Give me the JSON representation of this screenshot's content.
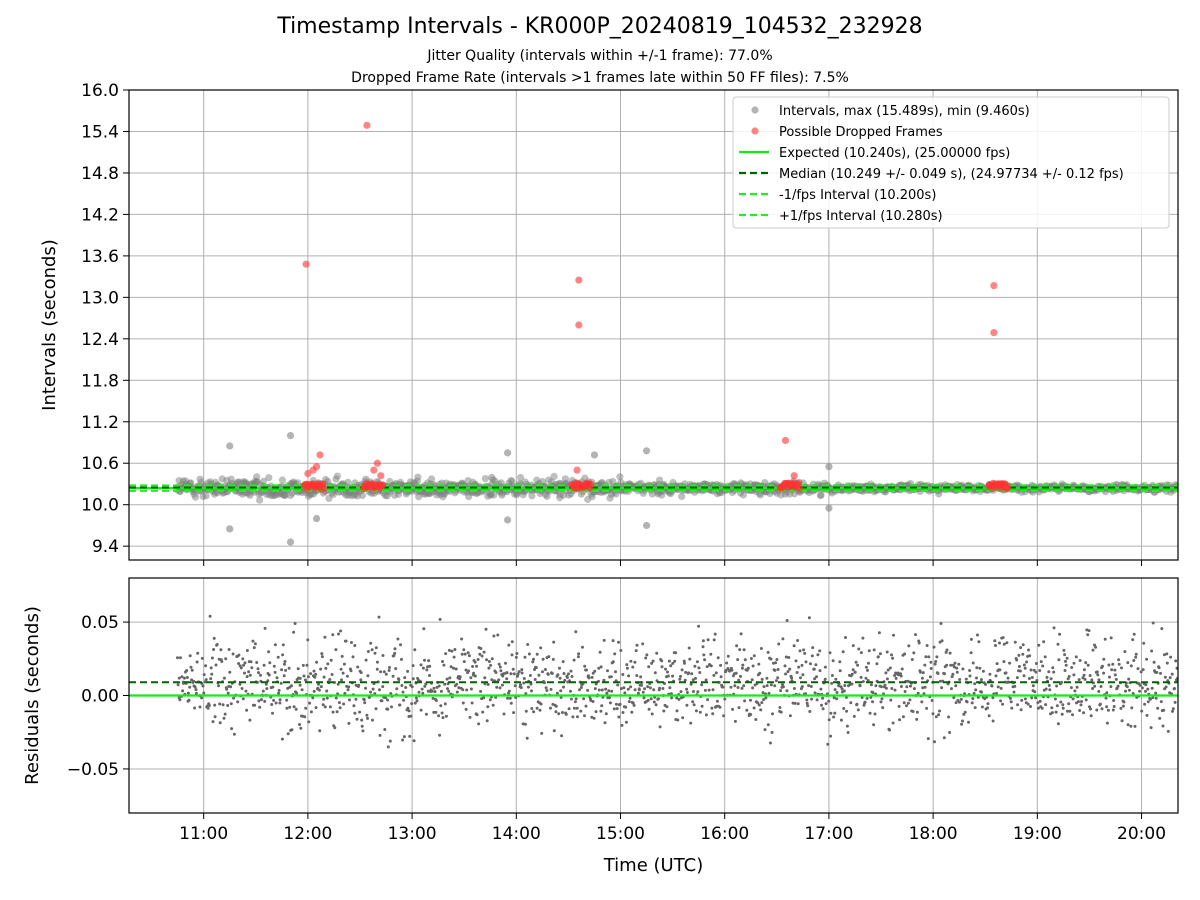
{
  "figure": {
    "title": "Timestamp Intervals - KR000P_20240819_104532_232928",
    "subtitle_jitter": "Jitter Quality (intervals within +/-1 frame): 77.0%",
    "subtitle_dropped": "Dropped Frame Rate (intervals >1 frames late within 50 FF files): 7.5%"
  },
  "chart_data": [
    {
      "type": "scatter",
      "ylabel": "Intervals (seconds)",
      "xlabel": "",
      "xlim": [
        "10:17",
        "20:21"
      ],
      "ylim": [
        9.2,
        16.0
      ],
      "yticks": [
        9.4,
        10.0,
        10.6,
        11.2,
        11.8,
        12.4,
        13.0,
        13.6,
        14.2,
        14.8,
        15.4,
        16.0
      ],
      "ytick_labels": [
        "9.4",
        "10.0",
        "10.6",
        "11.2",
        "11.8",
        "12.4",
        "13.0",
        "13.6",
        "14.2",
        "14.8",
        "15.4",
        "16.0"
      ],
      "grid": true,
      "legend_position": "top-right",
      "legend": [
        {
          "key": "intervals",
          "label": "Intervals, max (15.489s), min (9.460s)",
          "marker": "dot",
          "color": "#808080"
        },
        {
          "key": "dropped",
          "label": "Possible Dropped Frames",
          "marker": "dot",
          "color": "#ff3333"
        },
        {
          "key": "expected",
          "label": "Expected (10.240s), (25.00000 fps)",
          "marker": "solid",
          "color": "#11ee11"
        },
        {
          "key": "median",
          "label": "Median (10.249 +/- 0.049 s), (24.97734 +/- 0.12 fps)",
          "marker": "dashed",
          "color": "#006400"
        },
        {
          "key": "minus",
          "label": "-1/fps Interval (10.200s)",
          "marker": "dashed",
          "color": "#22ee22"
        },
        {
          "key": "plus",
          "label": "+1/fps Interval (10.280s)",
          "marker": "dashed",
          "color": "#22ee22"
        }
      ],
      "reference_lines": {
        "expected": 10.24,
        "median": 10.249,
        "minus_1_fps": 10.2,
        "plus_1_fps": 10.28
      },
      "series": [
        {
          "name": "Intervals, max (15.489s), min (9.460s)",
          "color": "#808080",
          "data_start": "10:45",
          "data_end": "20:21",
          "max": 15.489,
          "min": 9.46,
          "outliers": [
            {
              "x": "11:15",
              "y": 10.85
            },
            {
              "x": "11:50",
              "y": 11.0
            },
            {
              "x": "11:50",
              "y": 9.46
            },
            {
              "x": "11:15",
              "y": 9.65
            },
            {
              "x": "13:55",
              "y": 10.75
            },
            {
              "x": "14:45",
              "y": 10.72
            },
            {
              "x": "15:15",
              "y": 10.78
            },
            {
              "x": "15:15",
              "y": 9.7
            },
            {
              "x": "13:55",
              "y": 9.78
            },
            {
              "x": "12:05",
              "y": 9.8
            },
            {
              "x": "17:00",
              "y": 10.55
            },
            {
              "x": "17:00",
              "y": 9.95
            }
          ]
        },
        {
          "name": "Possible Dropped Frames",
          "color": "#ff3333",
          "points": [
            {
              "x": "11:59",
              "y": 13.48
            },
            {
              "x": "12:34",
              "y": 15.489
            },
            {
              "x": "14:36",
              "y": 13.25
            },
            {
              "x": "14:36",
              "y": 12.6
            },
            {
              "x": "16:35",
              "y": 10.93
            },
            {
              "x": "18:35",
              "y": 13.17
            },
            {
              "x": "18:35",
              "y": 12.49
            },
            {
              "x": "12:07",
              "y": 10.72
            },
            {
              "x": "12:05",
              "y": 10.55
            },
            {
              "x": "12:03",
              "y": 10.5
            },
            {
              "x": "12:00",
              "y": 10.45
            },
            {
              "x": "12:40",
              "y": 10.6
            },
            {
              "x": "12:38",
              "y": 10.5
            },
            {
              "x": "12:42",
              "y": 10.42
            },
            {
              "x": "14:35",
              "y": 10.5
            },
            {
              "x": "16:40",
              "y": 10.42
            },
            {
              "x": "18:38",
              "y": 10.3
            }
          ],
          "clusters": [
            {
              "start": "11:58",
              "end": "12:09",
              "y": 10.27
            },
            {
              "start": "12:32",
              "end": "12:43",
              "y": 10.27
            },
            {
              "start": "14:32",
              "end": "14:43",
              "y": 10.27
            },
            {
              "start": "16:32",
              "end": "16:43",
              "y": 10.27
            },
            {
              "start": "18:32",
              "end": "18:43",
              "y": 10.27
            }
          ]
        }
      ]
    },
    {
      "type": "scatter",
      "ylabel": "Residuals (seconds)",
      "xlabel": "Time (UTC)",
      "xlim": [
        "10:17",
        "20:21"
      ],
      "ylim": [
        -0.08,
        0.08
      ],
      "yticks": [
        -0.05,
        0.0,
        0.05
      ],
      "ytick_labels": [
        "−0.05",
        "0.00",
        "0.05"
      ],
      "xticks": [
        "11:00",
        "12:00",
        "13:00",
        "14:00",
        "15:00",
        "16:00",
        "17:00",
        "18:00",
        "19:00",
        "20:00"
      ],
      "grid": true,
      "reference_lines": {
        "zero": 0.0,
        "median_offset": 0.009
      },
      "series": [
        {
          "name": "",
          "color": "#666666",
          "data_start": "10:45",
          "data_end": "20:21",
          "spread": 0.08
        }
      ]
    }
  ]
}
